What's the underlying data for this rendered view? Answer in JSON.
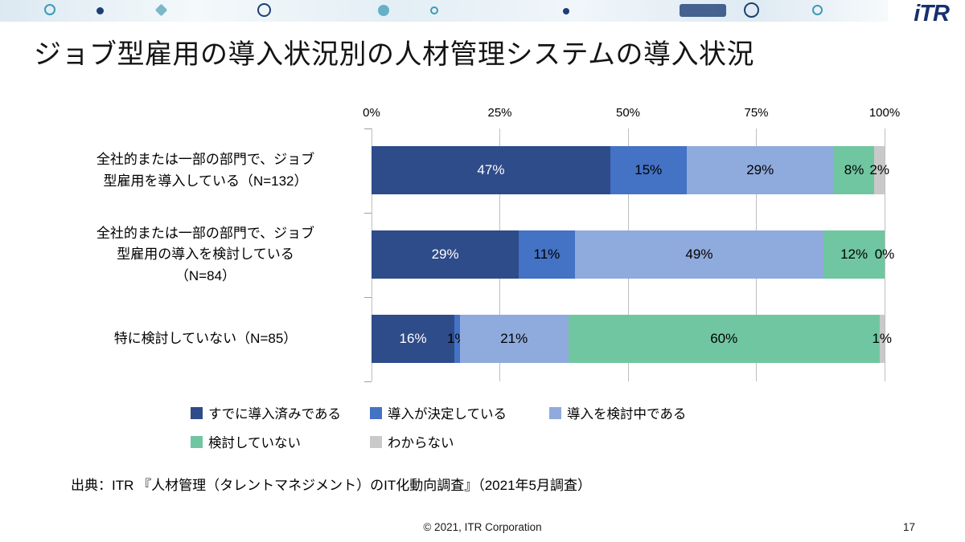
{
  "slide": {
    "logo_text": "iTR",
    "title": "ジョブ型雇用の導入状況別の人材管理システムの導入状況",
    "source": "出典：ITR 『人材管理（タレントマネジメント）のIT化動向調査』（2021年5月調査）",
    "copyright": "© 2021, ITR Corporation",
    "page_number": "17"
  },
  "colors": {
    "already_installed": "#2e4b8a",
    "decided": "#4472c4",
    "considering": "#8faadc",
    "not_considering": "#70c6a0",
    "unknown": "#c9c9c9",
    "gridline": "#bfbfbf",
    "logo": "#16306e"
  },
  "chart_data": {
    "type": "bar",
    "orientation": "horizontal",
    "stacked": true,
    "unit": "%",
    "xlim": [
      0,
      100
    ],
    "x_ticks": [
      "0%",
      "25%",
      "50%",
      "75%",
      "100%"
    ],
    "grid": true,
    "legend_position": "bottom",
    "categories": [
      "全社的または一部の部門で、ジョブ\n型雇用を導入している（N=132）",
      "全社的または一部の部門で、ジョブ\n型雇用の導入を検討している\n（N=84）",
      "特に検討していない（N=85）"
    ],
    "series": [
      {
        "name": "すでに導入済みである",
        "color": "#2e4b8a",
        "values": [
          47,
          29,
          16
        ]
      },
      {
        "name": "導入が決定している",
        "color": "#4472c4",
        "values": [
          15,
          11,
          1
        ]
      },
      {
        "name": "導入を検討中である",
        "color": "#8faadc",
        "values": [
          29,
          49,
          21
        ]
      },
      {
        "name": "検討していない",
        "color": "#70c6a0",
        "values": [
          8,
          12,
          60
        ]
      },
      {
        "name": "わからない",
        "color": "#c9c9c9",
        "values": [
          2,
          0,
          1
        ]
      }
    ]
  }
}
